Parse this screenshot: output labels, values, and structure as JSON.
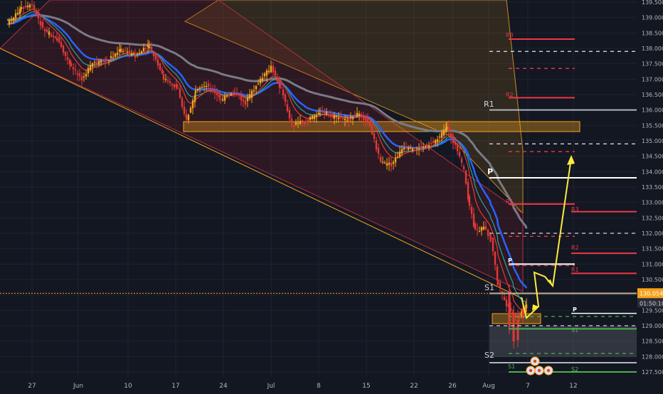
{
  "chart_data": {
    "type": "candlestick",
    "x_tick_labels": [
      "27",
      "Jun",
      "10",
      "17",
      "24",
      "Jul",
      "8",
      "15",
      "22",
      "26",
      "Aug",
      "7",
      "12"
    ],
    "y_tick_labels": [
      "127.500",
      "128.000",
      "128.500",
      "129.000",
      "129.500",
      "130.000",
      "130.500",
      "131.000",
      "131.500",
      "132.000",
      "132.500",
      "133.000",
      "133.500",
      "134.000",
      "134.500",
      "135.000",
      "135.500",
      "136.000",
      "136.500",
      "137.000",
      "137.500",
      "138.000",
      "138.500",
      "139.000",
      "139.500"
    ],
    "ylim": [
      127.3,
      139.6
    ],
    "current_price": {
      "value": "130.054",
      "countdown": "01:50:18",
      "color": "#f7a21b"
    },
    "colors": {
      "background": "#131722",
      "up": "#f7a21b",
      "down": "#e53935",
      "ema_fast": "#e53935",
      "ema_mid": "#26a69a",
      "ema_blue": "#2962ff",
      "ema_slow": "#787b86",
      "pivot": "#ffffff",
      "resistance": "#f23645",
      "support": "#4caf50",
      "projection": "#ffeb3b",
      "zone": "#f7a21b"
    },
    "pivot_labels": {
      "R1_big": "R1",
      "P_big": "P",
      "S1_big": "S1",
      "S2_big": "S2",
      "R3": "R3",
      "R2": "R2",
      "R1": "R1",
      "P": "P",
      "S1": "S1",
      "S2": "S2"
    },
    "pivot_levels": {
      "weekly_R1": 136.0,
      "weekly_P": 133.8,
      "weekly_S1": 130.05,
      "weekly_S2": 127.8,
      "monthly_R3": 138.3,
      "monthly_R2": 136.4,
      "monthly_R1": 132.95,
      "right_R3": 132.7,
      "right_R2": 131.35,
      "right_R1": 130.7,
      "daily_P": 131.0,
      "right_P": 129.4,
      "right_S1": 128.9,
      "right_S2": 127.5,
      "dashed_white": [
        137.9,
        134.9,
        132.0,
        129.0
      ],
      "dashed_red": [
        137.35,
        134.65,
        131.9,
        130.95
      ],
      "dashed_green": [
        129.3,
        128.1
      ]
    }
  }
}
